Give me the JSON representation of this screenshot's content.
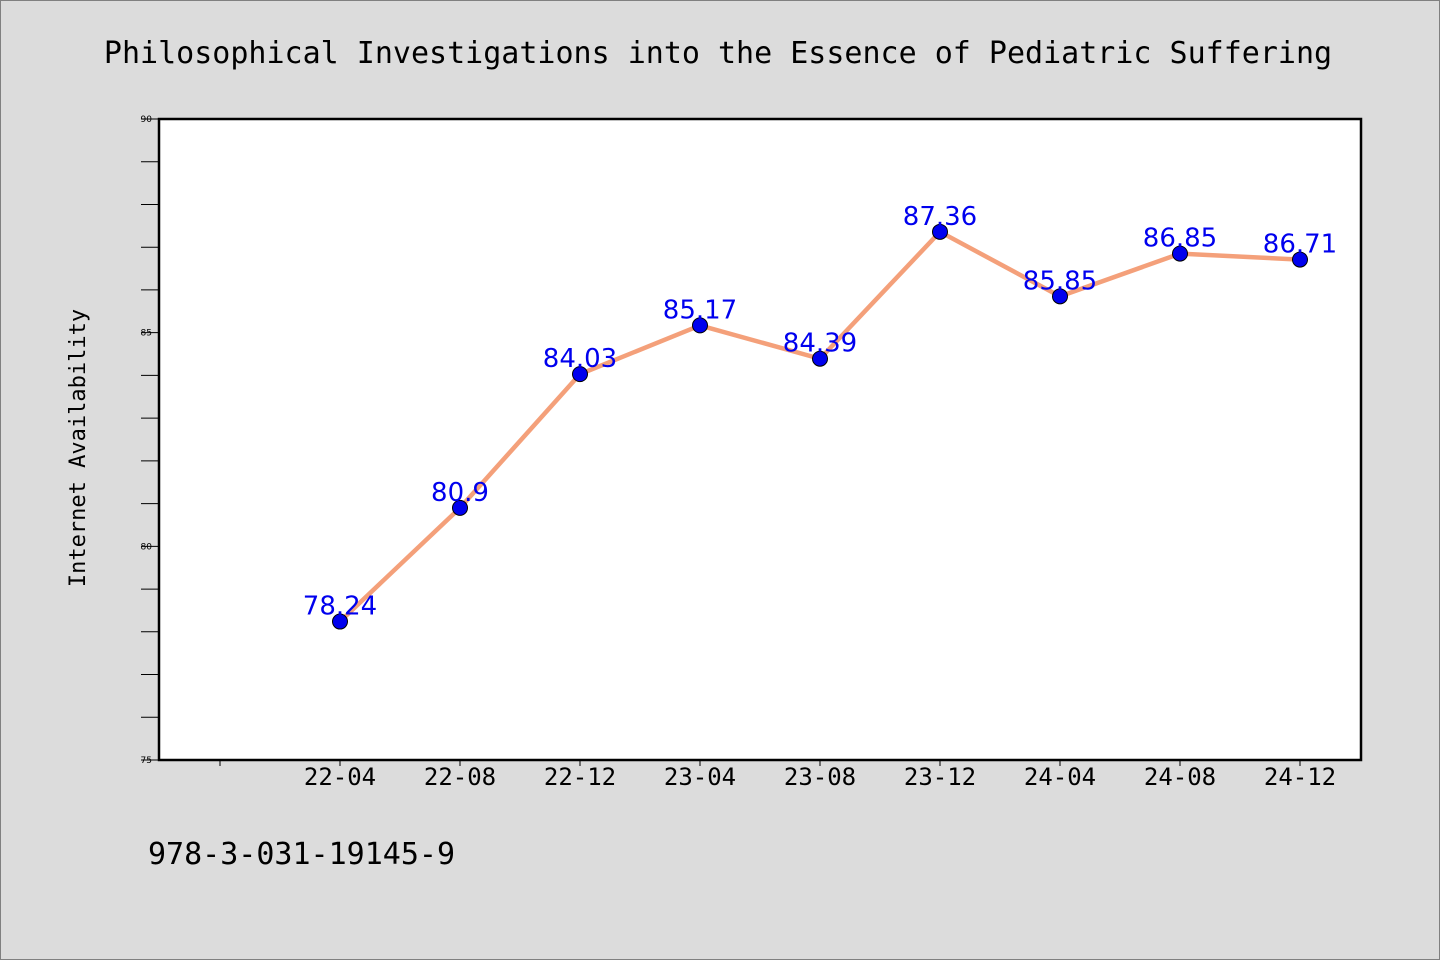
{
  "chart_data": {
    "type": "line",
    "title": "Philosophical Investigations into the Essence of Pediatric Suffering",
    "xlabel": "",
    "ylabel": "Internet Availability",
    "categories": [
      "22-04",
      "22-08",
      "22-12",
      "23-04",
      "23-08",
      "23-12",
      "24-04",
      "24-08",
      "24-12"
    ],
    "series": [
      {
        "values": [
          78.24,
          80.9,
          84.03,
          85.17,
          84.39,
          87.36,
          85.85,
          86.85,
          86.71
        ],
        "labels": [
          "78.24",
          "80.9",
          "84.03",
          "85.17",
          "84.39",
          "87.36",
          "85.85",
          "86.85",
          "86.71"
        ],
        "line_color": "#f4a07a",
        "marker_color": "#0000ee",
        "label_color": "#0000ee"
      }
    ],
    "ylim": [
      75,
      90
    ],
    "y_major_ticks": [
      75,
      80,
      85,
      90
    ],
    "y_tick_labels": [
      "75",
      "80",
      "85",
      "90"
    ],
    "grid": false,
    "background": "#dcdcdc",
    "plot_background": "#ffffff"
  },
  "footer": {
    "isbn": "978-3-031-19145-9"
  }
}
